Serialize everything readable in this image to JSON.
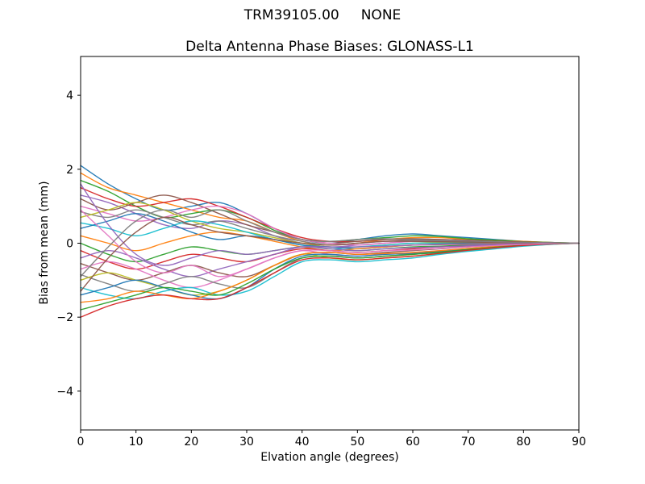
{
  "figure": {
    "suptitle": "TRM39105.00     NONE"
  },
  "chart_data": {
    "type": "line",
    "title": "Delta Antenna Phase Biases: GLONASS-L1",
    "xlabel": "Elvation angle (degrees)",
    "ylabel": "Bias from mean (mm)",
    "xlim": [
      0,
      90
    ],
    "ylim": [
      -5.05,
      5.05
    ],
    "xticks": [
      0,
      10,
      20,
      30,
      40,
      50,
      60,
      70,
      80,
      90
    ],
    "yticks": [
      -4,
      -2,
      0,
      2,
      4
    ],
    "grid": false,
    "legend": "none",
    "line_width": 1.4,
    "palette": [
      "#1f77b4",
      "#ff7f0e",
      "#2ca02c",
      "#d62728",
      "#9467bd",
      "#8c564b",
      "#e377c2",
      "#7f7f7f",
      "#bcbd22",
      "#17becf"
    ],
    "x": [
      0,
      5,
      10,
      15,
      20,
      25,
      30,
      35,
      40,
      45,
      50,
      55,
      60,
      65,
      70,
      75,
      80,
      85,
      90
    ],
    "series": [
      {
        "values": [
          2.1,
          1.6,
          1.2,
          0.9,
          1.0,
          1.1,
          0.8,
          0.4,
          0.1,
          0.0,
          0.1,
          0.2,
          0.25,
          0.2,
          0.15,
          0.1,
          0.05,
          0.02,
          0.0
        ]
      },
      {
        "values": [
          1.9,
          1.5,
          1.3,
          1.1,
          0.9,
          0.7,
          0.6,
          0.3,
          0.05,
          -0.05,
          0.0,
          0.1,
          0.15,
          0.15,
          0.1,
          0.08,
          0.05,
          0.02,
          0.0
        ]
      },
      {
        "values": [
          1.7,
          1.4,
          1.0,
          0.7,
          0.8,
          0.9,
          0.7,
          0.35,
          0.1,
          0.05,
          0.1,
          0.15,
          0.2,
          0.18,
          0.12,
          0.08,
          0.04,
          0.02,
          0.0
        ]
      },
      {
        "values": [
          1.5,
          1.2,
          1.0,
          1.1,
          1.2,
          1.0,
          0.7,
          0.4,
          0.15,
          0.05,
          0.05,
          0.1,
          0.1,
          0.1,
          0.08,
          0.05,
          0.03,
          0.01,
          0.0
        ]
      },
      {
        "values": [
          1.3,
          1.1,
          0.8,
          0.5,
          0.4,
          0.6,
          0.5,
          0.2,
          0.0,
          -0.1,
          -0.05,
          0.0,
          0.05,
          0.05,
          0.05,
          0.03,
          0.02,
          0.01,
          0.0
        ]
      },
      {
        "values": [
          1.2,
          0.9,
          1.1,
          1.3,
          1.1,
          0.8,
          0.5,
          0.3,
          0.1,
          0.0,
          0.05,
          0.1,
          0.12,
          0.1,
          0.08,
          0.05,
          0.02,
          0.01,
          0.0
        ]
      },
      {
        "values": [
          1.0,
          0.8,
          0.6,
          0.7,
          0.9,
          1.0,
          0.8,
          0.4,
          0.1,
          0.0,
          -0.05,
          0.0,
          0.05,
          0.08,
          0.06,
          0.04,
          0.02,
          0.01,
          0.0
        ]
      },
      {
        "values": [
          0.85,
          0.7,
          0.9,
          0.7,
          0.5,
          0.6,
          0.4,
          0.2,
          0.05,
          -0.05,
          0.0,
          0.05,
          0.08,
          0.06,
          0.05,
          0.03,
          0.02,
          0.01,
          0.0
        ]
      },
      {
        "values": [
          0.7,
          0.9,
          1.1,
          0.9,
          0.6,
          0.4,
          0.3,
          0.15,
          0.0,
          -0.1,
          -0.1,
          -0.05,
          0.0,
          0.02,
          0.02,
          0.01,
          0.01,
          0.0,
          0.0
        ]
      },
      {
        "values": [
          0.55,
          0.4,
          0.2,
          0.4,
          0.6,
          0.5,
          0.3,
          0.1,
          -0.05,
          -0.15,
          -0.1,
          -0.05,
          0.0,
          0.0,
          0.0,
          0.0,
          0.0,
          0.0,
          0.0
        ]
      },
      {
        "values": [
          0.4,
          0.6,
          0.8,
          0.6,
          0.3,
          0.1,
          0.2,
          0.1,
          -0.05,
          -0.1,
          -0.15,
          -0.1,
          -0.05,
          -0.02,
          0.0,
          0.0,
          0.0,
          0.0,
          0.0
        ]
      },
      {
        "values": [
          0.2,
          0.0,
          -0.2,
          0.0,
          0.2,
          0.3,
          0.2,
          0.05,
          -0.1,
          -0.2,
          -0.15,
          -0.1,
          -0.05,
          -0.03,
          -0.02,
          -0.01,
          0.0,
          0.0,
          0.0
        ]
      },
      {
        "values": [
          0.0,
          -0.3,
          -0.5,
          -0.3,
          -0.1,
          -0.2,
          -0.3,
          -0.2,
          -0.1,
          -0.15,
          -0.2,
          -0.15,
          -0.1,
          -0.08,
          -0.05,
          -0.03,
          -0.02,
          -0.01,
          0.0
        ]
      },
      {
        "values": [
          -0.2,
          -0.5,
          -0.7,
          -0.5,
          -0.3,
          -0.4,
          -0.5,
          -0.3,
          -0.15,
          -0.2,
          -0.25,
          -0.2,
          -0.15,
          -0.1,
          -0.08,
          -0.05,
          -0.03,
          -0.01,
          0.0
        ]
      },
      {
        "values": [
          -0.4,
          -0.2,
          -0.4,
          -0.7,
          -0.9,
          -0.7,
          -0.5,
          -0.3,
          -0.1,
          -0.15,
          -0.2,
          -0.15,
          -0.12,
          -0.1,
          -0.07,
          -0.05,
          -0.02,
          -0.01,
          0.0
        ]
      },
      {
        "values": [
          -0.55,
          -0.8,
          -1.0,
          -0.8,
          -0.6,
          -0.8,
          -0.9,
          -0.6,
          -0.3,
          -0.25,
          -0.3,
          -0.25,
          -0.2,
          -0.15,
          -0.1,
          -0.06,
          -0.03,
          -0.01,
          0.0
        ]
      },
      {
        "values": [
          -0.7,
          -0.5,
          -0.7,
          -1.0,
          -1.2,
          -1.0,
          -0.7,
          -0.4,
          -0.2,
          -0.3,
          -0.35,
          -0.3,
          -0.25,
          -0.2,
          -0.15,
          -0.1,
          -0.05,
          -0.02,
          0.0
        ]
      },
      {
        "values": [
          -0.85,
          -1.1,
          -1.3,
          -1.1,
          -0.9,
          -1.1,
          -1.2,
          -0.8,
          -0.4,
          -0.35,
          -0.4,
          -0.35,
          -0.3,
          -0.25,
          -0.18,
          -0.12,
          -0.06,
          -0.02,
          0.0
        ]
      },
      {
        "values": [
          -1.0,
          -0.8,
          -1.0,
          -1.2,
          -1.4,
          -1.3,
          -1.0,
          -0.6,
          -0.3,
          -0.4,
          -0.45,
          -0.4,
          -0.35,
          -0.28,
          -0.2,
          -0.13,
          -0.07,
          -0.03,
          0.0
        ]
      },
      {
        "values": [
          -1.2,
          -1.4,
          -1.5,
          -1.3,
          -1.2,
          -1.4,
          -1.3,
          -0.9,
          -0.5,
          -0.45,
          -0.5,
          -0.45,
          -0.4,
          -0.3,
          -0.22,
          -0.15,
          -0.08,
          -0.03,
          0.0
        ]
      },
      {
        "values": [
          -1.4,
          -1.2,
          -1.0,
          -1.2,
          -1.4,
          -1.5,
          -1.2,
          -0.7,
          -0.35,
          -0.3,
          -0.35,
          -0.3,
          -0.28,
          -0.22,
          -0.16,
          -0.1,
          -0.05,
          -0.02,
          0.0
        ]
      },
      {
        "values": [
          -1.6,
          -1.5,
          -1.3,
          -1.4,
          -1.5,
          -1.3,
          -1.0,
          -0.6,
          -0.3,
          -0.25,
          -0.3,
          -0.28,
          -0.25,
          -0.2,
          -0.14,
          -0.09,
          -0.04,
          -0.01,
          0.0
        ]
      },
      {
        "values": [
          -1.8,
          -1.6,
          -1.4,
          -1.2,
          -1.3,
          -1.4,
          -1.1,
          -0.7,
          -0.4,
          -0.35,
          -0.4,
          -0.35,
          -0.3,
          -0.24,
          -0.17,
          -0.11,
          -0.05,
          -0.02,
          0.0
        ]
      },
      {
        "values": [
          -2.0,
          -1.7,
          -1.5,
          -1.4,
          -1.5,
          -1.5,
          -1.2,
          -0.8,
          -0.45,
          -0.4,
          -0.45,
          -0.4,
          -0.35,
          -0.27,
          -0.19,
          -0.12,
          -0.06,
          -0.02,
          0.0
        ]
      },
      {
        "values": [
          1.6,
          0.5,
          -0.3,
          -0.6,
          -0.4,
          -0.2,
          -0.3,
          -0.2,
          -0.1,
          -0.1,
          -0.1,
          -0.08,
          -0.05,
          -0.04,
          -0.03,
          -0.02,
          -0.01,
          0.0,
          0.0
        ]
      },
      {
        "values": [
          -1.3,
          -0.4,
          0.3,
          0.7,
          0.5,
          0.3,
          0.2,
          0.1,
          0.0,
          -0.05,
          0.0,
          0.05,
          0.05,
          0.04,
          0.03,
          0.02,
          0.01,
          0.0,
          0.0
        ]
      },
      {
        "values": [
          0.9,
          0.2,
          -0.5,
          -0.8,
          -0.6,
          -0.9,
          -0.7,
          -0.4,
          -0.2,
          -0.2,
          -0.25,
          -0.2,
          -0.18,
          -0.14,
          -0.1,
          -0.06,
          -0.03,
          -0.01,
          0.0
        ]
      },
      {
        "values": [
          -0.9,
          -0.1,
          0.6,
          0.9,
          0.7,
          0.9,
          0.6,
          0.3,
          0.1,
          0.05,
          0.1,
          0.12,
          0.1,
          0.08,
          0.06,
          0.04,
          0.02,
          0.01,
          0.0
        ]
      }
    ]
  }
}
